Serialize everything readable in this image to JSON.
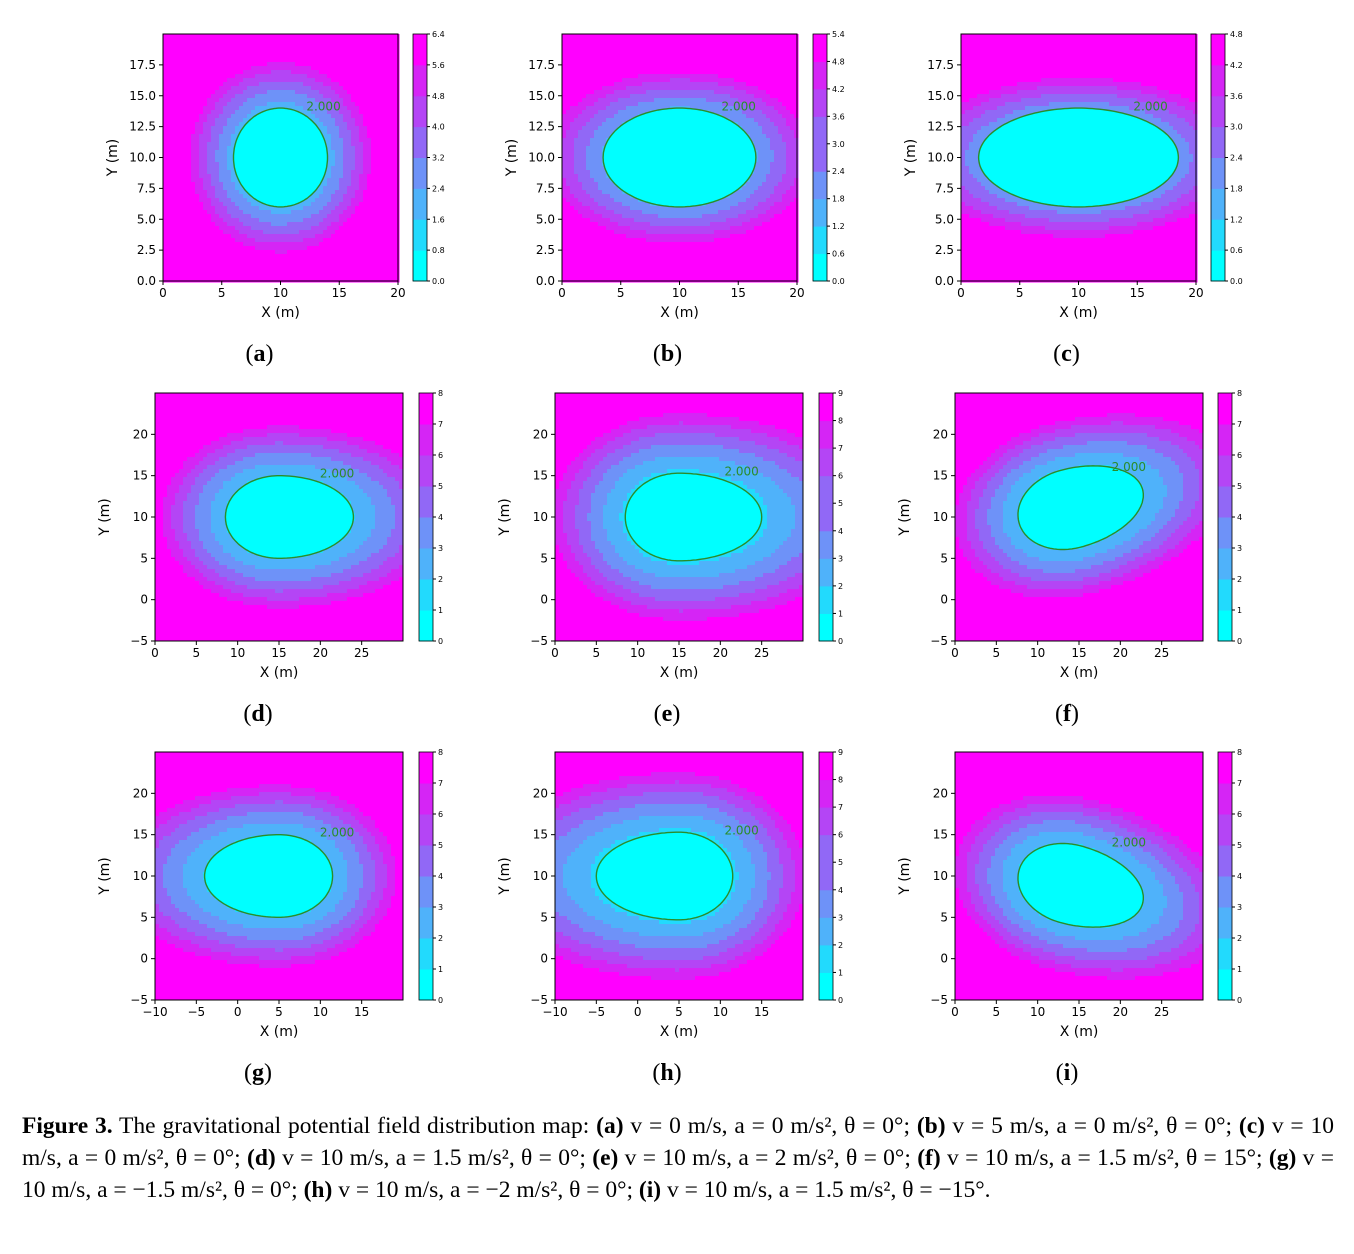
{
  "chart_data": [
    {
      "type": "contour",
      "panel": "(a)",
      "v": 0,
      "a": 0,
      "theta": 0,
      "xlim": [
        0,
        20
      ],
      "ylim": [
        0,
        20
      ],
      "xticks": [
        0,
        5,
        10,
        15,
        20
      ],
      "yticks": [
        0.0,
        2.5,
        5.0,
        7.5,
        10.0,
        12.5,
        15.0,
        17.5
      ],
      "ytick_decimals": 1,
      "xlabel": "X (m)",
      "ylabel": "Y (m)",
      "colorbar_ticks": [
        "0.0",
        "0.8",
        "1.6",
        "2.4",
        "3.2",
        "4.0",
        "4.8",
        "5.6",
        "6.4"
      ],
      "contour_label": "2.000"
    },
    {
      "type": "contour",
      "panel": "(b)",
      "v": 5,
      "a": 0,
      "theta": 0,
      "xlim": [
        0,
        20
      ],
      "ylim": [
        0,
        20
      ],
      "xticks": [
        0,
        5,
        10,
        15,
        20
      ],
      "yticks": [
        0.0,
        2.5,
        5.0,
        7.5,
        10.0,
        12.5,
        15.0,
        17.5
      ],
      "ytick_decimals": 1,
      "xlabel": "X (m)",
      "ylabel": "Y (m)",
      "colorbar_ticks": [
        "0.0",
        "0.6",
        "1.2",
        "1.8",
        "2.4",
        "3.0",
        "3.6",
        "4.2",
        "4.8",
        "5.4"
      ],
      "contour_label": "2.000"
    },
    {
      "type": "contour",
      "panel": "(c)",
      "v": 10,
      "a": 0,
      "theta": 0,
      "xlim": [
        0,
        20
      ],
      "ylim": [
        0,
        20
      ],
      "xticks": [
        0,
        5,
        10,
        15,
        20
      ],
      "yticks": [
        0.0,
        2.5,
        5.0,
        7.5,
        10.0,
        12.5,
        15.0,
        17.5
      ],
      "ytick_decimals": 1,
      "xlabel": "X (m)",
      "ylabel": "Y (m)",
      "colorbar_ticks": [
        "0.0",
        "0.6",
        "1.2",
        "1.8",
        "2.4",
        "3.0",
        "3.6",
        "4.2",
        "4.8"
      ],
      "contour_label": "2.000"
    },
    {
      "type": "contour",
      "panel": "(d)",
      "v": 10,
      "a": 1.5,
      "theta": 0,
      "xlim": [
        0,
        30
      ],
      "ylim": [
        -5,
        25
      ],
      "xticks": [
        0,
        5,
        10,
        15,
        20,
        25
      ],
      "yticks": [
        -5,
        0,
        5,
        10,
        15,
        20
      ],
      "ytick_decimals": 0,
      "xlabel": "X (m)",
      "ylabel": "Y (m)",
      "colorbar_ticks": [
        "0",
        "1",
        "2",
        "3",
        "4",
        "5",
        "6",
        "7",
        "8"
      ],
      "contour_label": "2.000"
    },
    {
      "type": "contour",
      "panel": "(e)",
      "v": 10,
      "a": 2,
      "theta": 0,
      "xlim": [
        0,
        30
      ],
      "ylim": [
        -5,
        25
      ],
      "xticks": [
        0,
        5,
        10,
        15,
        20,
        25
      ],
      "yticks": [
        -5,
        0,
        5,
        10,
        15,
        20
      ],
      "ytick_decimals": 0,
      "xlabel": "X (m)",
      "ylabel": "Y (m)",
      "colorbar_ticks": [
        "0",
        "1",
        "2",
        "3",
        "4",
        "5",
        "6",
        "7",
        "8",
        "9"
      ],
      "contour_label": "2.000"
    },
    {
      "type": "contour",
      "panel": "(f)",
      "v": 10,
      "a": 1.5,
      "theta": 15,
      "xlim": [
        0,
        30
      ],
      "ylim": [
        -5,
        25
      ],
      "xticks": [
        0,
        5,
        10,
        15,
        20,
        25
      ],
      "yticks": [
        -5,
        0,
        5,
        10,
        15,
        20
      ],
      "ytick_decimals": 0,
      "xlabel": "X (m)",
      "ylabel": "Y (m)",
      "colorbar_ticks": [
        "0",
        "1",
        "2",
        "3",
        "4",
        "5",
        "6",
        "7",
        "8"
      ],
      "contour_label": "2.000"
    },
    {
      "type": "contour",
      "panel": "(g)",
      "v": 10,
      "a": -1.5,
      "theta": 0,
      "xlim": [
        -10,
        20
      ],
      "ylim": [
        -5,
        25
      ],
      "xticks": [
        -10,
        -5,
        0,
        5,
        10,
        15
      ],
      "yticks": [
        -5,
        0,
        5,
        10,
        15,
        20
      ],
      "ytick_decimals": 0,
      "xlabel": "X (m)",
      "ylabel": "Y (m)",
      "colorbar_ticks": [
        "0",
        "1",
        "2",
        "3",
        "4",
        "5",
        "6",
        "7",
        "8"
      ],
      "contour_label": "2.000"
    },
    {
      "type": "contour",
      "panel": "(h)",
      "v": 10,
      "a": -2,
      "theta": 0,
      "xlim": [
        -10,
        20
      ],
      "ylim": [
        -5,
        25
      ],
      "xticks": [
        -10,
        -5,
        0,
        5,
        10,
        15
      ],
      "yticks": [
        -5,
        0,
        5,
        10,
        15,
        20
      ],
      "ytick_decimals": 0,
      "xlabel": "X (m)",
      "ylabel": "Y (m)",
      "colorbar_ticks": [
        "0",
        "1",
        "2",
        "3",
        "4",
        "5",
        "6",
        "7",
        "8",
        "9"
      ],
      "contour_label": "2.000"
    },
    {
      "type": "contour",
      "panel": "(i)",
      "v": 10,
      "a": 1.5,
      "theta": -15,
      "xlim": [
        0,
        30
      ],
      "ylim": [
        -5,
        25
      ],
      "xticks": [
        0,
        5,
        10,
        15,
        20,
        25
      ],
      "yticks": [
        -5,
        0,
        5,
        10,
        15,
        20
      ],
      "ytick_decimals": 0,
      "xlabel": "X (m)",
      "ylabel": "Y (m)",
      "colorbar_ticks": [
        "0",
        "1",
        "2",
        "3",
        "4",
        "5",
        "6",
        "7",
        "8"
      ],
      "contour_label": "2.000"
    }
  ],
  "colormap": [
    "#00ffff",
    "#22dafd",
    "#4fb2fa",
    "#6e92f8",
    "#9168f6",
    "#b445f5",
    "#d525f5",
    "#ff00ff"
  ],
  "contour_color": "#2a8c2a",
  "caption": {
    "lead": "Figure 3.",
    "text": " The gravitational potential field distribution map:",
    "items": [
      {
        "label": "(a)",
        "text": "v = 0  m/s, a = 0  m/s², θ = 0°;"
      },
      {
        "label": "(b)",
        "text": "v = 5  m/s, a = 0  m/s², θ = 0°;"
      },
      {
        "label": "(c)",
        "text": "v = 10  m/s, a = 0  m/s², θ = 0°;"
      },
      {
        "label": "(d)",
        "text": "v = 10  m/s, a = 1.5  m/s², θ = 0°;"
      },
      {
        "label": "(e)",
        "text": "v = 10  m/s, a = 2  m/s², θ = 0°;"
      },
      {
        "label": "(f)",
        "text": "v = 10  m/s, a = 1.5  m/s², θ = 15°;"
      },
      {
        "label": "(g)",
        "text": "v = 10  m/s, a = −1.5  m/s², θ = 0°;"
      },
      {
        "label": "(h)",
        "text": "v = 10  m/s, a = −2  m/s², θ = 0°;"
      },
      {
        "label": "(i)",
        "text": "v = 10  m/s, a = 1.5  m/s², θ = −15°."
      }
    ]
  }
}
